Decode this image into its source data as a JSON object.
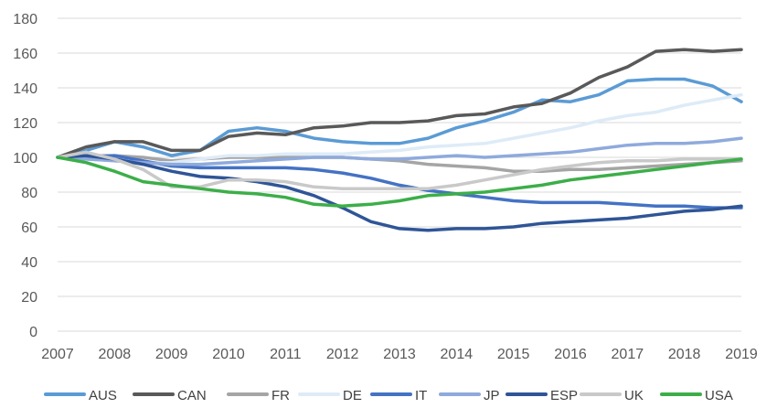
{
  "chart_data": {
    "type": "line",
    "title": "",
    "xlabel": "",
    "ylabel": "",
    "xlim": [
      2007,
      2019
    ],
    "ylim": [
      0,
      180
    ],
    "x_ticks": [
      "2007",
      "2008",
      "2009",
      "2010",
      "2011",
      "2012",
      "2013",
      "2014",
      "2015",
      "2016",
      "2017",
      "2018",
      "2019"
    ],
    "y_ticks": [
      "0",
      "20",
      "40",
      "60",
      "80",
      "100",
      "120",
      "140",
      "160",
      "180"
    ],
    "grid": true,
    "legend_position": "bottom",
    "x": [
      2007,
      2007.5,
      2008,
      2008.5,
      2009,
      2009.5,
      2010,
      2010.5,
      2011,
      2011.5,
      2012,
      2012.5,
      2013,
      2013.5,
      2014,
      2014.5,
      2015,
      2015.5,
      2016,
      2016.5,
      2017,
      2017.5,
      2018,
      2018.5,
      2019
    ],
    "series": [
      {
        "name": "AUS",
        "color": "#5b9bd5",
        "values": [
          100,
          104,
          109,
          106,
          101,
          104,
          115,
          117,
          115,
          111,
          109,
          108,
          108,
          111,
          117,
          121,
          126,
          133,
          132,
          136,
          144,
          145,
          145,
          141,
          132
        ]
      },
      {
        "name": "CAN",
        "color": "#595959",
        "values": [
          100,
          106,
          109,
          109,
          104,
          104,
          112,
          114,
          113,
          117,
          118,
          120,
          120,
          121,
          124,
          125,
          129,
          131,
          137,
          146,
          152,
          161,
          162,
          161,
          162
        ]
      },
      {
        "name": "FR",
        "color": "#a5a5a5",
        "values": [
          100,
          101,
          101,
          100,
          98,
          99,
          100,
          100,
          100,
          100,
          100,
          99,
          98,
          96,
          95,
          94,
          92,
          92,
          93,
          93,
          94,
          95,
          96,
          97,
          98
        ]
      },
      {
        "name": "DE",
        "color": "#deebf7",
        "values": [
          100,
          99,
          98,
          97,
          97,
          99,
          101,
          101,
          102,
          102,
          102,
          103,
          104,
          106,
          107,
          108,
          111,
          114,
          117,
          121,
          124,
          126,
          130,
          133,
          136
        ]
      },
      {
        "name": "IT",
        "color": "#4472c4",
        "values": [
          100,
          100,
          101,
          98,
          95,
          94,
          94,
          94,
          94,
          93,
          91,
          88,
          84,
          81,
          79,
          77,
          75,
          74,
          74,
          74,
          73,
          72,
          72,
          71,
          71
        ]
      },
      {
        "name": "JP",
        "color": "#8faadc",
        "values": [
          100,
          99,
          98,
          97,
          96,
          96,
          97,
          98,
          99,
          100,
          100,
          99,
          99,
          100,
          101,
          100,
          101,
          102,
          103,
          105,
          107,
          108,
          108,
          109,
          111
        ]
      },
      {
        "name": "ESP",
        "color": "#2f5597",
        "values": [
          100,
          101,
          99,
          96,
          92,
          89,
          88,
          86,
          83,
          78,
          71,
          63,
          59,
          58,
          59,
          59,
          60,
          62,
          63,
          64,
          65,
          67,
          69,
          70,
          72
        ]
      },
      {
        "name": "UK",
        "color": "#c9c9c9",
        "values": [
          100,
          103,
          99,
          93,
          83,
          83,
          87,
          87,
          86,
          83,
          82,
          82,
          82,
          82,
          84,
          87,
          90,
          93,
          95,
          97,
          98,
          98,
          99,
          99,
          99
        ]
      },
      {
        "name": "USA",
        "color": "#3cae49",
        "values": [
          100,
          97,
          92,
          86,
          84,
          82,
          80,
          79,
          77,
          73,
          72,
          73,
          75,
          78,
          79,
          80,
          82,
          84,
          87,
          89,
          91,
          93,
          95,
          97,
          99
        ]
      }
    ]
  }
}
